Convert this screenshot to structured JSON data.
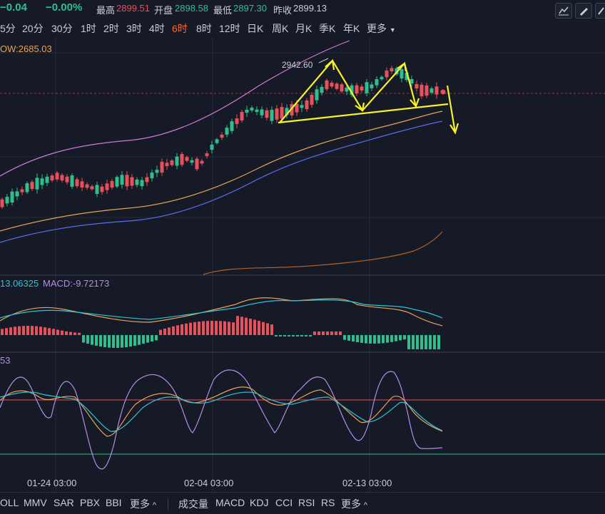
{
  "header": {
    "change": "−0.04",
    "change_pct": "−0.00%",
    "high_label": "最高",
    "high_value": "2899.51",
    "open_label": "开盘",
    "open_value": "2898.58",
    "low_label": "最低",
    "low_value": "2897.30",
    "prev_close_label": "昨收",
    "prev_close_value": "2899.13"
  },
  "timeframes": [
    "5分",
    "20分",
    "30分",
    "1时",
    "2时",
    "3时",
    "4时",
    "6时",
    "8时",
    "12时",
    "日K",
    "周K",
    "月K",
    "季K",
    "年K"
  ],
  "active_timeframe": "6时",
  "more_label": "更多",
  "main_indicator": "OW:2685.03",
  "peak_label": "2942.60",
  "macd_header": {
    "dif": "13.06325",
    "macd": "MACD:-9.72173"
  },
  "kdj_header": "53",
  "x_axis": [
    "01-24 03:00",
    "02-04 03:00",
    "02-13 03:00"
  ],
  "bottom_indicators": [
    "OLL",
    "MMV",
    "SAR",
    "PBX",
    "BBI"
  ],
  "bottom_more_left": "更多",
  "sub_indicators": [
    "成交量",
    "MACD",
    "KDJ",
    "CCI",
    "RSI",
    "RS"
  ],
  "bottom_more_right": "更多",
  "colors": {
    "up": "#e8505b",
    "down": "#2fbf8f",
    "ma_orange": "#e7a35a",
    "ma_blue": "#5a6cf0",
    "boll_pink": "#d07ad8",
    "annotation": "#f5f229"
  }
}
